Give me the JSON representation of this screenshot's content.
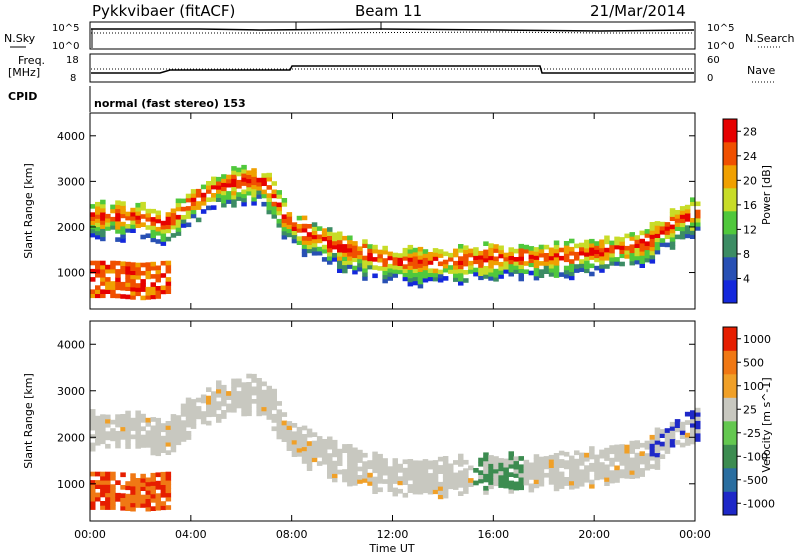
{
  "header": {
    "station": "Pykkvibaer (fitACF)",
    "beam": "Beam 11",
    "date": "21/Mar/2014"
  },
  "noise_panel": {
    "left_label": "N.Sky",
    "right_label": "N.Search",
    "left_ticks": [
      "10^5",
      "10^0"
    ],
    "right_ticks": [
      "10^5",
      "10^0"
    ]
  },
  "freq_panel": {
    "left_label_1": "Freq.",
    "left_label_2": "[MHz]",
    "right_label": "Nave",
    "left_ticks": [
      "18",
      "8"
    ],
    "right_ticks": [
      "60",
      "0"
    ]
  },
  "cpid": {
    "label": "CPID",
    "mode": "normal (fast stereo) 153"
  },
  "colors": {
    "power_scale": [
      "#1428dc",
      "#2850b4",
      "#3c8c64",
      "#50c83c",
      "#c8dc28",
      "#f0a000",
      "#f05000",
      "#e60000"
    ],
    "velocity_scale": [
      "#1e28c8",
      "#2a6ea0",
      "#3c8c50",
      "#64c850",
      "#c8c8c0",
      "#f0a028",
      "#f07814",
      "#e61e00"
    ]
  },
  "chart_data": [
    {
      "type": "heatmap",
      "title": "Power",
      "xlabel": "Time UT",
      "ylabel": "Slant Range [km]",
      "xlim_hours": [
        0,
        24
      ],
      "ylim": [
        200,
        4500
      ],
      "x_ticks": [
        "00:00",
        "04:00",
        "08:00",
        "12:00",
        "16:00",
        "20:00",
        "00:00"
      ],
      "y_ticks": [
        1000,
        2000,
        3000,
        4000
      ],
      "colorbar": {
        "label": "Power [dB]",
        "ticks": [
          4,
          8,
          12,
          16,
          20,
          24,
          28
        ],
        "range": [
          0,
          30
        ]
      },
      "echo_bands": [
        {
          "name": "main",
          "points": [
            [
              0,
              2200
            ],
            [
              2,
              2200
            ],
            [
              3,
              2000
            ],
            [
              4,
              2500
            ],
            [
              5,
              2800
            ],
            [
              6,
              3000
            ],
            [
              7,
              2900
            ],
            [
              8,
              2000
            ],
            [
              10,
              1500
            ],
            [
              12,
              1200
            ],
            [
              14,
              1200
            ],
            [
              16,
              1300
            ],
            [
              18,
              1300
            ],
            [
              20,
              1400
            ],
            [
              22,
              1600
            ],
            [
              23,
              2000
            ],
            [
              24,
              2300
            ]
          ]
        },
        {
          "name": "near_range",
          "points": [
            [
              0,
              750
            ],
            [
              1,
              750
            ],
            [
              2,
              700
            ],
            [
              3,
              750
            ]
          ]
        }
      ]
    },
    {
      "type": "heatmap",
      "title": "Velocity",
      "xlabel": "Time UT",
      "ylabel": "Slant Range [km]",
      "xlim_hours": [
        0,
        24
      ],
      "ylim": [
        200,
        4500
      ],
      "x_ticks": [
        "00:00",
        "04:00",
        "08:00",
        "12:00",
        "16:00",
        "20:00",
        "00:00"
      ],
      "y_ticks": [
        1000,
        2000,
        3000,
        4000
      ],
      "colorbar": {
        "label": "Velocity [m s^-1]",
        "ticks": [
          "1000",
          "500",
          "100",
          "25",
          "-25",
          "-100",
          "-500",
          "-1000"
        ],
        "range": [
          -1000,
          1000
        ]
      }
    }
  ]
}
